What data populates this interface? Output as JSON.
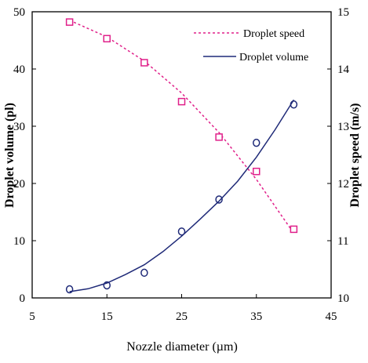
{
  "chart_data": {
    "type": "scatter",
    "title": "",
    "xlabel": "Nozzle diameter (µm)",
    "ylabel_left": "Droplet volume (pl)",
    "ylabel_right": "Droplet speed (m/s)",
    "xlim": [
      5,
      45
    ],
    "ylim_left": [
      0,
      50
    ],
    "ylim_right": [
      10,
      15
    ],
    "x_ticks": [
      "5",
      "15",
      "25",
      "35",
      "45"
    ],
    "y_left_ticks": [
      "0",
      "10",
      "20",
      "30",
      "40",
      "50"
    ],
    "y_right_ticks": [
      "10",
      "11",
      "12",
      "13",
      "14",
      "15"
    ],
    "grid": false,
    "legend_position": "top-right",
    "series": [
      {
        "name": "Droplet speed",
        "axis": "right",
        "marker": "square",
        "line_style": "dotted",
        "color": "#e0208a",
        "x": [
          10,
          15,
          20,
          25,
          30,
          35,
          40
        ],
        "y": [
          14.82,
          14.53,
          14.11,
          13.43,
          12.81,
          12.21,
          11.2
        ],
        "fit_x": [
          10,
          15,
          20,
          25,
          30,
          35,
          40
        ],
        "fit_y": [
          14.85,
          14.56,
          14.14,
          13.58,
          12.89,
          12.07,
          11.13
        ]
      },
      {
        "name": "Droplet volume",
        "axis": "left",
        "marker": "circle",
        "line_style": "solid",
        "color": "#1f2a78",
        "x": [
          10,
          15,
          20,
          25,
          30,
          35,
          40
        ],
        "y": [
          1.5,
          2.2,
          4.4,
          11.6,
          17.2,
          27.1,
          33.8
        ],
        "fit_x": [
          10,
          12.5,
          15,
          17.5,
          20,
          22.5,
          25,
          27.5,
          30,
          32.5,
          35,
          37.5,
          40
        ],
        "fit_y": [
          1.1,
          1.6,
          2.6,
          4.1,
          5.8,
          8.1,
          10.8,
          13.8,
          16.9,
          20.4,
          24.6,
          29.4,
          34.6
        ]
      }
    ]
  }
}
